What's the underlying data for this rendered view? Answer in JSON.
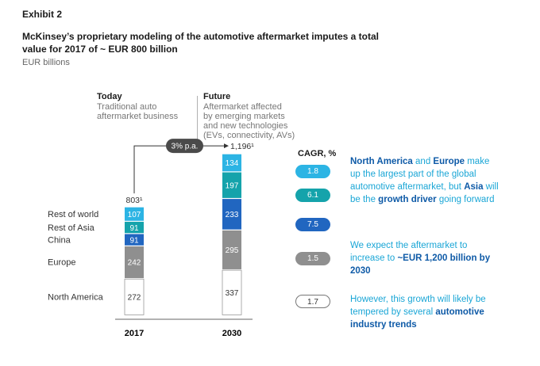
{
  "header": {
    "exhibit": "Exhibit 2",
    "title": "McKinsey’s proprietary modeling of the automotive aftermarket imputes a total value for 2017 of ~ EUR 800 billion",
    "units": "EUR billions"
  },
  "columns": {
    "today": {
      "head": "Today",
      "desc_lines": [
        "Traditional auto",
        "aftermarket business"
      ]
    },
    "future": {
      "head": "Future",
      "desc_lines": [
        "Aftermarket affected",
        "by emerging markets",
        "and new technologies",
        "(EVs, connectivity, AVs)"
      ]
    }
  },
  "growth_label": "3% p.a.",
  "chart_data": {
    "type": "bar",
    "stacked": true,
    "categories": [
      "2017",
      "2030"
    ],
    "totals": [
      "803¹",
      "1,196¹"
    ],
    "series": [
      {
        "name": "North America",
        "values": [
          272,
          337
        ],
        "color": "#ffffff",
        "text_color": "#333333",
        "border": "#999999"
      },
      {
        "name": "Europe",
        "values": [
          242,
          295
        ],
        "color": "#8f8f8f",
        "text_color": "#ffffff"
      },
      {
        "name": "China",
        "values": [
          91,
          233
        ],
        "color": "#2166c0",
        "text_color": "#ffffff"
      },
      {
        "name": "Rest of Asia",
        "values": [
          91,
          197
        ],
        "color": "#15a3ab",
        "text_color": "#ffffff"
      },
      {
        "name": "Rest of world",
        "values": [
          107,
          134
        ],
        "color": "#2cb4e4",
        "text_color": "#ffffff"
      }
    ]
  },
  "cagr": {
    "head": "CAGR, %",
    "values": [
      {
        "value": "1.8",
        "color": "#2cb4e4",
        "text": "#ffffff"
      },
      {
        "value": "6.1",
        "color": "#15a3ab",
        "text": "#ffffff"
      },
      {
        "value": "7.5",
        "color": "#2166c0",
        "text": "#ffffff"
      },
      {
        "value": "1.5",
        "color": "#8f8f8f",
        "text": "#ffffff"
      },
      {
        "value": "1.7",
        "color": "#ffffff",
        "text": "#333333"
      }
    ]
  },
  "notes": {
    "n1": {
      "a": "North America",
      "b": " and ",
      "c": "Europe",
      "d": " make up the largest part of the global automotive aftermarket, but ",
      "e": "Asia",
      "f": " will be the ",
      "g": "growth driver",
      "h": " going forward"
    },
    "n2": {
      "a": "We expect the aftermarket to increase to ",
      "b": "~EUR 1,200 billion by 2030"
    },
    "n3": {
      "a": "However, this growth will likely be tempered by several ",
      "b": "automotive industry trends"
    }
  }
}
